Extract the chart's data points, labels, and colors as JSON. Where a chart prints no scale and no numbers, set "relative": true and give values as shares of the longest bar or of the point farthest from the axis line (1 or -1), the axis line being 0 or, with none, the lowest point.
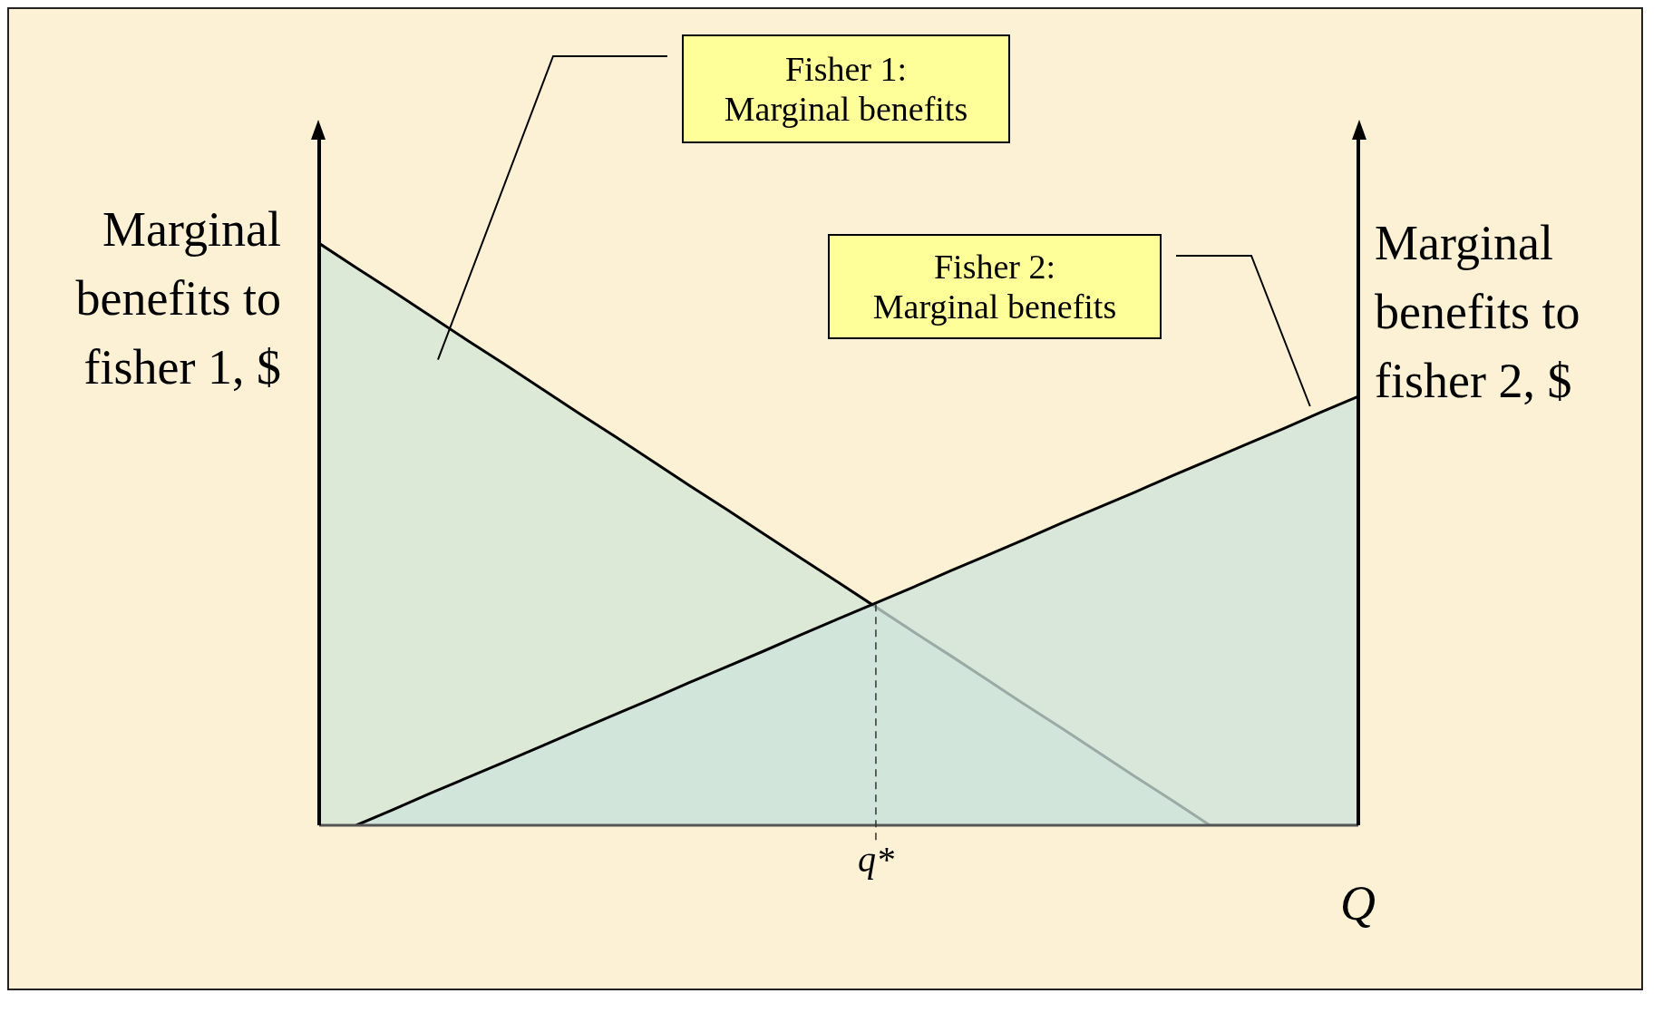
{
  "chart_data": {
    "type": "area",
    "relative": true,
    "ylabel": "Marginal benefits to fisher 1, $",
    "y2label": "Marginal benefits to fisher 2, $",
    "xlabel": "Q",
    "categories": [
      null,
      null,
      null,
      null,
      null,
      null,
      null,
      null,
      null,
      null,
      null,
      null,
      null,
      null,
      null,
      null,
      null,
      null,
      null,
      null,
      null,
      null,
      null,
      null,
      null,
      null,
      null,
      null,
      null
    ],
    "series": [
      {
        "color": "#d3e5d8",
        "values": [
          1,
          0.958,
          0.917,
          0.875,
          0.833,
          0.792,
          0.75,
          0.708,
          0.667,
          0.625,
          0.583,
          0.542,
          0.5,
          0.458,
          0.417,
          0.375,
          0.333,
          0.292,
          0.25,
          0.208,
          0.167,
          0.125,
          0.083,
          0.042,
          0,
          0,
          0,
          0,
          0
        ]
      },
      {
        "color": "#cde3dc",
        "values": [
          null,
          0,
          0.027,
          0.055,
          0.082,
          0.109,
          0.136,
          0.164,
          0.191,
          0.218,
          0.246,
          0.273,
          0.3,
          0.328,
          0.355,
          0.382,
          0.409,
          0.437,
          0.464,
          0.491,
          0.519,
          0.546,
          0.573,
          0.601,
          0.628,
          0.655,
          0.682,
          0.71,
          0.737
        ]
      }
    ],
    "annotations": [
      "Fisher 1:\nMarginal benefits",
      "Fisher 2:\nMarginal benefits",
      {
        "text": "q*",
        "y": 0.38
      }
    ]
  }
}
